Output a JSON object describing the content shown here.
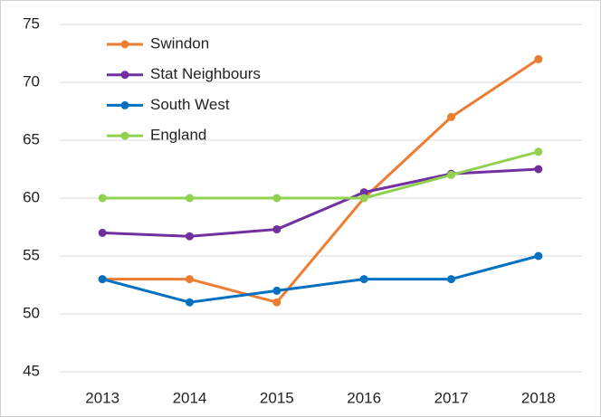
{
  "chart_data": {
    "type": "line",
    "categories": [
      "2013",
      "2014",
      "2015",
      "2016",
      "2017",
      "2018"
    ],
    "series": [
      {
        "name": "Swindon",
        "color": "#ed7d31",
        "values": [
          53,
          53,
          51,
          60,
          67,
          72
        ]
      },
      {
        "name": "Stat Neighbours",
        "color": "#7030a0",
        "values": [
          57,
          56.7,
          57.3,
          60.5,
          62.1,
          62.5
        ]
      },
      {
        "name": "South West",
        "color": "#0070c0",
        "values": [
          53,
          51,
          52,
          53,
          53,
          55
        ]
      },
      {
        "name": "England",
        "color": "#92d050",
        "values": [
          60,
          60,
          60,
          60,
          62,
          64
        ]
      }
    ],
    "ylim": [
      45,
      75
    ],
    "yticks": [
      45,
      50,
      55,
      60,
      65,
      70,
      75
    ],
    "grid": true,
    "legend": "top-left"
  }
}
